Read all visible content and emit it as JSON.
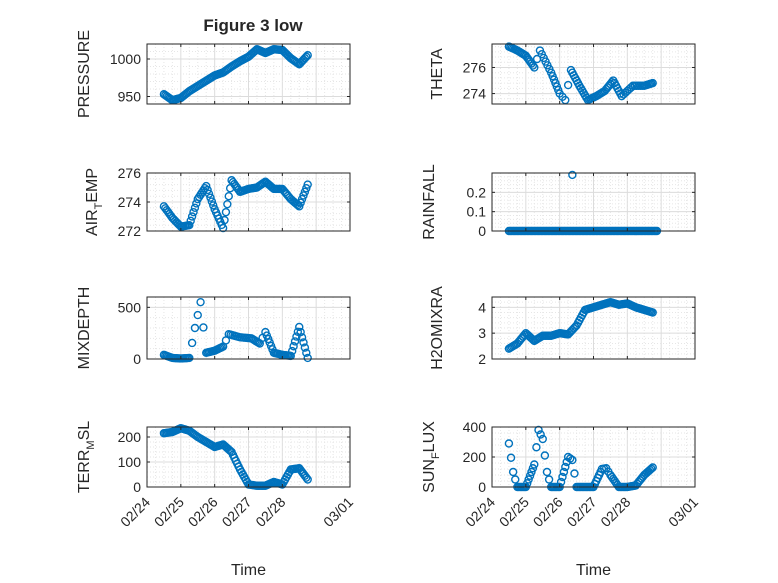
{
  "figure": {
    "title": "Figure 3 low",
    "xlabel": "Time",
    "marker_color": "#0072BD",
    "x_tick_labels": [
      "02/24",
      "02/25",
      "02/26",
      "02/27",
      "02/28",
      "03/01"
    ]
  },
  "chart_data": [
    {
      "type": "scatter",
      "title": "Figure 3 low",
      "ylabel": "PRESSURE",
      "x_range": [
        "02/24",
        "03/01"
      ],
      "ylim": [
        940,
        1020
      ],
      "yticks": [
        950,
        1000
      ],
      "grid": true,
      "series": [
        {
          "x": [
            "02/24 12:00",
            "02/24 18:00",
            "02/25 00:00",
            "02/25 06:00",
            "02/25 12:00",
            "02/25 18:00",
            "02/26 00:00",
            "02/26 06:00",
            "02/26 12:00",
            "02/26 18:00",
            "02/27 00:00",
            "02/27 06:00",
            "02/27 12:00",
            "02/27 18:00",
            "02/28 00:00",
            "02/28 06:00",
            "02/28 12:00",
            "02/28 18:00"
          ],
          "y": [
            953,
            945,
            948,
            957,
            964,
            971,
            978,
            982,
            990,
            997,
            1003,
            1013,
            1008,
            1013,
            1012,
            1001,
            993,
            1005
          ]
        }
      ]
    },
    {
      "type": "scatter",
      "ylabel": "THETA",
      "x_range": [
        "02/24",
        "03/01"
      ],
      "ylim": [
        273.2,
        277.8
      ],
      "yticks": [
        274,
        276
      ],
      "grid": true,
      "series": [
        {
          "x": [
            "02/24 12:00",
            "02/24 18:00",
            "02/25 00:00",
            "02/25 06:00",
            "02/25 10:00",
            "02/25 18:00",
            "02/26 00:00",
            "02/26 04:00",
            "02/26 08:00",
            "02/26 14:00",
            "02/26 20:00",
            "02/27 02:00",
            "02/27 08:00",
            "02/27 14:00",
            "02/27 20:00",
            "02/28 04:00",
            "02/28 12:00",
            "02/28 18:00"
          ],
          "y": [
            277.6,
            277.3,
            276.9,
            276.0,
            277.3,
            275.6,
            274.0,
            273.5,
            275.8,
            274.6,
            273.5,
            273.8,
            274.2,
            275.0,
            273.8,
            274.6,
            274.6,
            274.8
          ]
        }
      ]
    },
    {
      "type": "scatter",
      "ylabel": "AIR_TEMP",
      "x_range": [
        "02/24",
        "03/01"
      ],
      "ylim": [
        272,
        276
      ],
      "yticks": [
        272,
        274,
        276
      ],
      "grid": true,
      "series": [
        {
          "x": [
            "02/24 12:00",
            "02/24 18:00",
            "02/25 00:00",
            "02/25 06:00",
            "02/25 12:00",
            "02/25 18:00",
            "02/26 00:00",
            "02/26 06:00",
            "02/26 12:00",
            "02/26 18:00",
            "02/27 00:00",
            "02/27 06:00",
            "02/27 12:00",
            "02/27 18:00",
            "02/28 00:00",
            "02/28 06:00",
            "02/28 12:00",
            "02/28 18:00"
          ],
          "y": [
            273.7,
            272.9,
            272.3,
            272.4,
            274.2,
            275.1,
            273.5,
            272.2,
            275.5,
            274.7,
            274.9,
            275.0,
            275.4,
            274.9,
            274.9,
            274.2,
            273.7,
            275.2
          ]
        }
      ]
    },
    {
      "type": "scatter",
      "ylabel": "RAINFALL",
      "x_range": [
        "02/24",
        "03/01"
      ],
      "ylim": [
        0,
        0.3
      ],
      "yticks": [
        0,
        0.1,
        0.2
      ],
      "grid": true,
      "series": [
        {
          "x": [
            "02/24 12:00",
            "02/25 00:00",
            "02/25 12:00",
            "02/26 00:00",
            "02/26 09:00",
            "02/26 12:00",
            "02/27 00:00",
            "02/27 12:00",
            "02/28 00:00",
            "02/28 12:00",
            "02/28 21:00"
          ],
          "y": [
            0,
            0,
            0,
            0,
            0.29,
            0,
            0,
            0,
            0,
            0,
            0
          ]
        }
      ]
    },
    {
      "type": "scatter",
      "ylabel": "MIXDEPTH",
      "x_range": [
        "02/24",
        "03/01"
      ],
      "ylim": [
        0,
        600
      ],
      "yticks": [
        0,
        500
      ],
      "grid": true,
      "series": [
        {
          "x": [
            "02/24 12:00",
            "02/24 18:00",
            "02/25 00:00",
            "02/25 06:00",
            "02/25 10:00",
            "02/25 14:00",
            "02/25 18:00",
            "02/26 00:00",
            "02/26 06:00",
            "02/26 10:00",
            "02/26 18:00",
            "02/27 02:00",
            "02/27 08:00",
            "02/27 12:00",
            "02/27 18:00",
            "02/28 00:00",
            "02/28 06:00",
            "02/28 12:00",
            "02/28 18:00"
          ],
          "y": [
            40,
            10,
            5,
            10,
            300,
            550,
            60,
            80,
            120,
            240,
            210,
            200,
            150,
            260,
            60,
            40,
            30,
            310,
            10
          ]
        }
      ]
    },
    {
      "type": "scatter",
      "ylabel": "H2OMIXRA",
      "x_range": [
        "02/24",
        "03/01"
      ],
      "ylim": [
        2,
        4.4
      ],
      "yticks": [
        2,
        3,
        4
      ],
      "grid": true,
      "series": [
        {
          "x": [
            "02/24 12:00",
            "02/24 18:00",
            "02/25 00:00",
            "02/25 06:00",
            "02/25 12:00",
            "02/25 18:00",
            "02/26 00:00",
            "02/26 06:00",
            "02/26 12:00",
            "02/26 18:00",
            "02/27 00:00",
            "02/27 06:00",
            "02/27 12:00",
            "02/27 18:00",
            "02/28 00:00",
            "02/28 06:00",
            "02/28 12:00",
            "02/28 18:00"
          ],
          "y": [
            2.4,
            2.6,
            3.0,
            2.7,
            2.9,
            2.9,
            3.0,
            2.95,
            3.3,
            3.9,
            4.0,
            4.1,
            4.2,
            4.1,
            4.15,
            4.0,
            3.9,
            3.8
          ]
        }
      ]
    },
    {
      "type": "scatter",
      "ylabel": "TERR_MSL",
      "x_range": [
        "02/24",
        "03/01"
      ],
      "ylim": [
        0,
        240
      ],
      "yticks": [
        0,
        100,
        200
      ],
      "grid": true,
      "series": [
        {
          "x": [
            "02/24 12:00",
            "02/24 18:00",
            "02/25 00:00",
            "02/25 06:00",
            "02/25 12:00",
            "02/25 18:00",
            "02/26 00:00",
            "02/26 06:00",
            "02/26 12:00",
            "02/26 18:00",
            "02/27 00:00",
            "02/27 06:00",
            "02/27 12:00",
            "02/27 18:00",
            "02/28 00:00",
            "02/28 06:00",
            "02/28 12:00",
            "02/28 18:00"
          ],
          "y": [
            215,
            220,
            235,
            225,
            200,
            180,
            160,
            170,
            140,
            70,
            10,
            5,
            5,
            20,
            10,
            70,
            75,
            30
          ]
        }
      ]
    },
    {
      "type": "scatter",
      "ylabel": "SUN_FLUX",
      "x_range": [
        "02/24",
        "03/01"
      ],
      "ylim": [
        0,
        400
      ],
      "yticks": [
        0,
        200,
        400
      ],
      "grid": true,
      "series": [
        {
          "x": [
            "02/24 12:00",
            "02/24 15:00",
            "02/24 18:00",
            "02/25 00:00",
            "02/25 06:00",
            "02/25 09:00",
            "02/25 12:00",
            "02/25 15:00",
            "02/25 18:00",
            "02/26 00:00",
            "02/26 06:00",
            "02/26 09:00",
            "02/26 12:00",
            "02/26 18:00",
            "02/27 00:00",
            "02/27 06:00",
            "02/27 09:00",
            "02/27 12:00",
            "02/27 18:00",
            "02/28 00:00",
            "02/28 06:00",
            "02/28 12:00",
            "02/28 18:00"
          ],
          "y": [
            290,
            100,
            0,
            0,
            150,
            380,
            320,
            100,
            0,
            0,
            200,
            180,
            0,
            0,
            0,
            120,
            125,
            80,
            0,
            0,
            10,
            80,
            130
          ]
        }
      ]
    }
  ]
}
